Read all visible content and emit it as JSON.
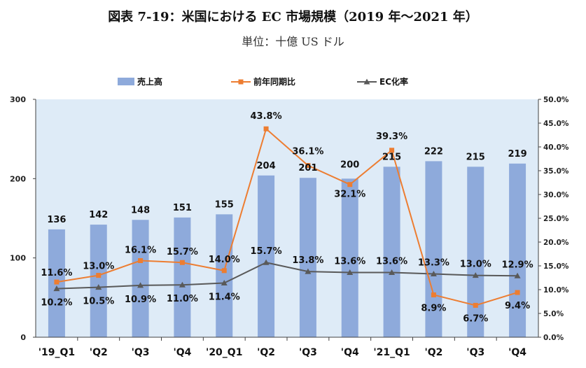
{
  "title": "図表 7-19：米国における EC 市場規模（2019 年〜2021 年）",
  "subtitle": "単位：十億 US ドル",
  "chart_data": {
    "type": "bar",
    "categories": [
      "'19_Q1",
      "'Q2",
      "'Q3",
      "'Q4",
      "'20_Q1",
      "'Q2",
      "'Q3",
      "'Q4",
      "'21_Q1",
      "'Q2",
      "'Q3",
      "'Q4"
    ],
    "series": [
      {
        "name": "売上高",
        "type": "bar",
        "axis": "left",
        "color": "#8EAADB",
        "values": [
          136,
          142,
          148,
          151,
          155,
          204,
          201,
          200,
          215,
          222,
          215,
          219
        ],
        "labels": [
          "136",
          "142",
          "148",
          "151",
          "155",
          "204",
          "201",
          "200",
          "215",
          "222",
          "215",
          "219"
        ]
      },
      {
        "name": "前年同期比",
        "type": "line",
        "axis": "right",
        "color": "#ED7D31",
        "values": [
          11.6,
          13.0,
          16.1,
          15.7,
          14.0,
          43.8,
          36.1,
          32.1,
          39.3,
          8.9,
          6.7,
          9.4
        ],
        "labels": [
          "11.6%",
          "13.0%",
          "16.1%",
          "15.7%",
          "14.0%",
          "43.8%",
          "36.1%",
          "32.1%",
          "39.3%",
          "8.9%",
          "6.7%",
          "9.4%"
        ]
      },
      {
        "name": "EC化率",
        "type": "line",
        "axis": "right",
        "color": "#595959",
        "values": [
          10.2,
          10.5,
          10.9,
          11.0,
          11.4,
          15.7,
          13.8,
          13.6,
          13.6,
          13.3,
          13.0,
          12.9
        ],
        "labels": [
          "10.2%",
          "10.5%",
          "10.9%",
          "11.0%",
          "11.4%",
          "15.7%",
          "13.8%",
          "13.6%",
          "13.6%",
          "13.3%",
          "13.0%",
          "12.9%"
        ]
      }
    ],
    "y_left": {
      "range": [
        0,
        300
      ],
      "ticks": [
        "0",
        "100",
        "200",
        "300"
      ]
    },
    "y_right": {
      "range": [
        0,
        50
      ],
      "ticks": [
        "0.0%",
        "5.0%",
        "10.0%",
        "15.0%",
        "20.0%",
        "25.0%",
        "30.0%",
        "35.0%",
        "40.0%",
        "45.0%",
        "50.0%"
      ]
    },
    "legend_position": "top",
    "grid": false
  }
}
